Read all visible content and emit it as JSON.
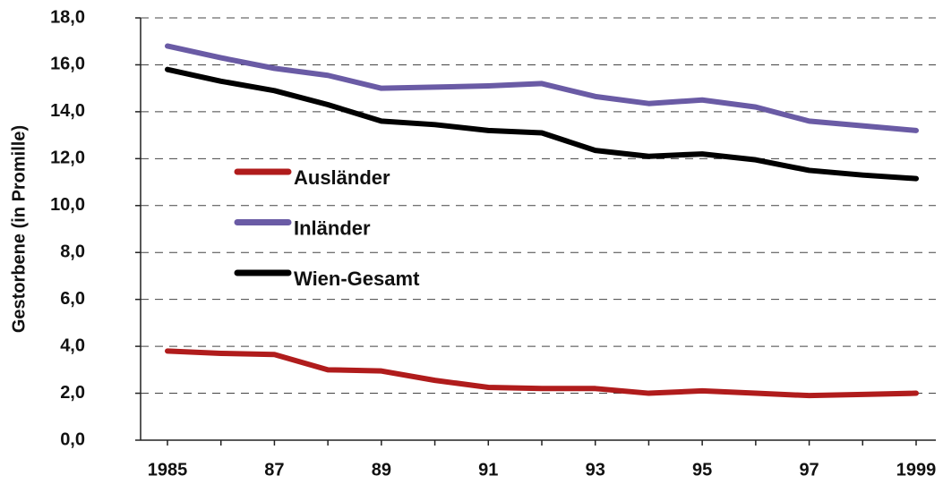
{
  "chart_data": {
    "type": "line",
    "y_label": "Gestorbene (in Promille)",
    "categories": [
      "1985",
      null,
      "87",
      null,
      "89",
      null,
      "91",
      null,
      "93",
      null,
      "95",
      null,
      "97",
      null,
      "1999"
    ],
    "series": [
      {
        "name": "Ausländer",
        "color": "#b01c1c",
        "values": [
          3.8,
          3.7,
          3.65,
          3.0,
          2.95,
          2.55,
          2.25,
          2.2,
          2.2,
          2.0,
          2.1,
          2.0,
          1.9,
          1.95,
          2.0
        ]
      },
      {
        "name": "Inländer",
        "color": "#6a5ba5",
        "values": [
          16.8,
          16.3,
          15.85,
          15.55,
          15.0,
          15.05,
          15.1,
          15.2,
          14.65,
          14.35,
          14.5,
          14.2,
          13.6,
          13.4,
          13.2
        ]
      },
      {
        "name": "Wien-Gesamt",
        "color": "#000000",
        "values": [
          15.8,
          15.3,
          14.9,
          14.3,
          13.6,
          13.45,
          13.2,
          13.1,
          12.35,
          12.1,
          12.2,
          11.95,
          11.5,
          11.3,
          11.15
        ]
      }
    ],
    "ylim": [
      0,
      18
    ],
    "yticks": [
      {
        "value": 0,
        "label": "0,0"
      },
      {
        "value": 2,
        "label": "2,0"
      },
      {
        "value": 4,
        "label": "4,0"
      },
      {
        "value": 6,
        "label": "6,0"
      },
      {
        "value": 8,
        "label": "8,0"
      },
      {
        "value": 10,
        "label": "10,0"
      },
      {
        "value": 12,
        "label": "12,0"
      },
      {
        "value": 14,
        "label": "14,0"
      },
      {
        "value": 16,
        "label": "16,0"
      },
      {
        "value": 18,
        "label": "18,0"
      }
    ],
    "grid": true
  }
}
